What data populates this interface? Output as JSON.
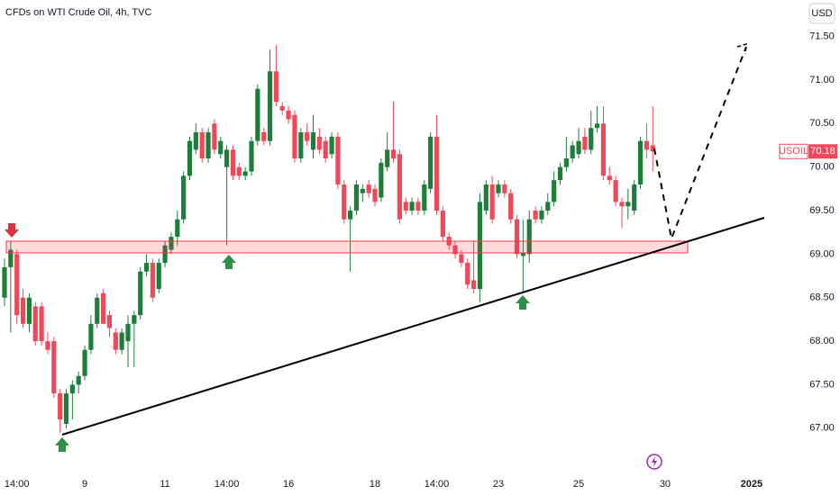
{
  "chart_data": {
    "type": "candlestick",
    "title": "CFDs on WTI Crude Oil, 4h, TVC",
    "currency": "USD",
    "symbol_label": "USOIL",
    "up_color": "#1b7f3a",
    "down_color": "#f0485a",
    "ylim": [
      66.75,
      71.92
    ],
    "yticks": [
      {
        "value": 67,
        "label": "67.00"
      },
      {
        "value": 67.5,
        "label": "67.50"
      },
      {
        "value": 68,
        "label": "68.00"
      },
      {
        "value": 68.5,
        "label": "68.50"
      },
      {
        "value": 69,
        "label": "69.00"
      },
      {
        "value": 69.5,
        "label": "69.50"
      },
      {
        "value": 70,
        "label": "70.00"
      },
      {
        "value": 70.5,
        "label": "70.50"
      },
      {
        "value": 71,
        "label": "71.00"
      },
      {
        "value": 71.5,
        "label": "71.50"
      }
    ],
    "categories": [
      null,
      null,
      "14:00",
      null,
      null,
      null,
      null,
      null,
      null,
      null,
      null,
      null,
      null,
      "9",
      null,
      null,
      null,
      null,
      null,
      null,
      null,
      null,
      null,
      null,
      null,
      null,
      "11",
      null,
      null,
      null,
      null,
      null,
      null,
      null,
      null,
      null,
      "14:00",
      null,
      null,
      null,
      null,
      null,
      null,
      null,
      null,
      null,
      "16",
      null,
      null,
      null,
      null,
      null,
      null,
      null,
      null,
      null,
      null,
      null,
      null,
      null,
      "18",
      null,
      null,
      null,
      null,
      null,
      null,
      null,
      null,
      null,
      "14:00",
      null,
      null,
      null,
      null,
      null,
      null,
      null,
      null,
      null,
      "23",
      null,
      null,
      null,
      null,
      null,
      null,
      null,
      null,
      null,
      null,
      null,
      null,
      "25",
      null,
      null,
      null,
      null,
      null,
      null,
      null,
      null,
      null,
      null,
      null,
      null,
      null,
      "30",
      null,
      null,
      null,
      null,
      null,
      null,
      null,
      null,
      null,
      null,
      null,
      null,
      null,
      "2025",
      null,
      null,
      null,
      null,
      null,
      null,
      null,
      null
    ],
    "ohlc": [
      [
        68.5,
        68.95,
        68.4,
        68.85
      ],
      [
        68.85,
        69.15,
        68.1,
        69.05
      ],
      [
        69.0,
        69.05,
        68.2,
        68.3
      ],
      [
        68.5,
        68.6,
        68.15,
        68.2
      ],
      [
        68.2,
        68.55,
        68.1,
        68.5
      ],
      [
        68.4,
        68.45,
        67.95,
        68.0
      ],
      [
        68.4,
        68.45,
        67.95,
        68.0
      ],
      [
        68.0,
        68.1,
        67.85,
        67.9
      ],
      [
        68.0,
        68.05,
        67.35,
        67.4
      ],
      [
        67.4,
        67.45,
        66.95,
        67.1
      ],
      [
        67.05,
        67.45,
        67.0,
        67.4
      ],
      [
        67.4,
        67.55,
        67.1,
        67.5
      ],
      [
        67.5,
        67.65,
        67.4,
        67.6
      ],
      [
        67.6,
        67.95,
        67.55,
        67.9
      ],
      [
        67.9,
        68.3,
        67.85,
        68.2
      ],
      [
        68.2,
        68.55,
        68.15,
        68.5
      ],
      [
        68.55,
        68.6,
        68.2,
        68.2
      ],
      [
        68.3,
        68.35,
        68.05,
        68.15
      ],
      [
        68.1,
        68.15,
        67.85,
        67.9
      ],
      [
        67.9,
        68.15,
        67.85,
        68.1
      ],
      [
        68.0,
        68.3,
        67.7,
        68.2
      ],
      [
        68.2,
        68.35,
        67.7,
        68.3
      ],
      [
        68.3,
        68.85,
        68.25,
        68.8
      ],
      [
        68.8,
        69.0,
        68.75,
        68.9
      ],
      [
        68.9,
        68.95,
        68.45,
        68.5
      ],
      [
        68.6,
        68.95,
        68.55,
        68.9
      ],
      [
        68.9,
        69.15,
        68.85,
        69.1
      ],
      [
        69.05,
        69.25,
        69.0,
        69.2
      ],
      [
        69.2,
        69.5,
        69.1,
        69.4
      ],
      [
        69.4,
        69.95,
        69.35,
        69.9
      ],
      [
        69.9,
        70.35,
        69.85,
        70.3
      ],
      [
        70.2,
        70.5,
        70.15,
        70.4
      ],
      [
        70.4,
        70.45,
        70.05,
        70.1
      ],
      [
        70.1,
        70.45,
        70.05,
        70.4
      ],
      [
        70.5,
        70.55,
        70.15,
        70.2
      ],
      [
        70.15,
        70.35,
        70.1,
        70.3
      ],
      [
        70.0,
        70.25,
        69.1,
        70.2
      ],
      [
        70.2,
        70.25,
        69.85,
        69.9
      ],
      [
        70.0,
        70.05,
        69.85,
        69.9
      ],
      [
        69.9,
        70.0,
        69.85,
        69.95
      ],
      [
        69.95,
        70.35,
        69.9,
        70.3
      ],
      [
        70.3,
        70.95,
        70.25,
        70.9
      ],
      [
        70.4,
        70.45,
        70.25,
        70.3
      ],
      [
        70.3,
        71.35,
        70.25,
        71.1
      ],
      [
        71.1,
        71.4,
        70.7,
        70.75
      ],
      [
        70.7,
        70.75,
        70.6,
        70.65
      ],
      [
        70.65,
        70.7,
        70.5,
        70.55
      ],
      [
        70.6,
        70.65,
        70.05,
        70.1
      ],
      [
        70.1,
        70.45,
        70.05,
        70.4
      ],
      [
        70.4,
        70.5,
        70.25,
        70.3
      ],
      [
        70.2,
        70.6,
        70.1,
        70.4
      ],
      [
        70.35,
        70.45,
        70.15,
        70.2
      ],
      [
        70.3,
        70.35,
        70.05,
        70.1
      ],
      [
        70.15,
        70.4,
        70.1,
        70.35
      ],
      [
        70.35,
        70.4,
        69.75,
        69.8
      ],
      [
        69.8,
        69.85,
        69.35,
        69.4
      ],
      [
        69.4,
        69.55,
        68.8,
        69.5
      ],
      [
        69.5,
        69.85,
        69.45,
        69.8
      ],
      [
        69.7,
        69.8,
        69.6,
        69.75
      ],
      [
        69.8,
        69.85,
        69.65,
        69.7
      ],
      [
        69.75,
        69.8,
        69.55,
        69.6
      ],
      [
        69.65,
        70.1,
        69.6,
        70.05
      ],
      [
        70.0,
        70.4,
        69.95,
        70.2
      ],
      [
        70.2,
        70.75,
        70.05,
        70.1
      ],
      [
        70.15,
        70.2,
        69.35,
        69.4
      ],
      [
        69.6,
        69.65,
        69.45,
        69.5
      ],
      [
        69.5,
        69.65,
        69.45,
        69.6
      ],
      [
        69.6,
        69.65,
        69.45,
        69.5
      ],
      [
        69.5,
        69.85,
        69.45,
        69.8
      ],
      [
        69.75,
        70.4,
        69.7,
        70.35
      ],
      [
        70.35,
        70.6,
        69.45,
        69.5
      ],
      [
        69.5,
        69.55,
        69.15,
        69.2
      ],
      [
        69.2,
        69.25,
        69.05,
        69.1
      ],
      [
        69.1,
        69.15,
        68.95,
        69.0
      ],
      [
        69.0,
        69.05,
        68.85,
        68.9
      ],
      [
        68.9,
        68.95,
        68.6,
        68.65
      ],
      [
        68.7,
        69.15,
        68.55,
        68.6
      ],
      [
        68.6,
        69.7,
        68.45,
        69.6
      ],
      [
        69.5,
        69.85,
        69.45,
        69.8
      ],
      [
        69.8,
        69.9,
        69.35,
        69.4
      ],
      [
        69.7,
        69.85,
        69.65,
        69.8
      ],
      [
        69.8,
        69.85,
        69.65,
        69.7
      ],
      [
        69.7,
        69.75,
        69.35,
        69.4
      ],
      [
        69.4,
        69.45,
        68.95,
        69.0
      ],
      [
        68.98,
        69.4,
        68.55,
        69.02
      ],
      [
        69.0,
        69.5,
        68.9,
        69.4
      ],
      [
        69.5,
        69.55,
        69.35,
        69.4
      ],
      [
        69.4,
        69.55,
        69.35,
        69.5
      ],
      [
        69.5,
        69.7,
        69.45,
        69.6
      ],
      [
        69.6,
        69.95,
        69.55,
        69.85
      ],
      [
        69.85,
        70.05,
        69.8,
        70.0
      ],
      [
        70.0,
        70.35,
        69.95,
        70.1
      ],
      [
        70.1,
        70.3,
        70.05,
        70.25
      ],
      [
        70.15,
        70.45,
        70.1,
        70.3
      ],
      [
        70.35,
        70.45,
        70.15,
        70.2
      ],
      [
        70.2,
        70.65,
        70.15,
        70.45
      ],
      [
        70.45,
        70.7,
        70.4,
        70.5
      ],
      [
        70.5,
        70.7,
        69.85,
        69.9
      ],
      [
        69.9,
        70.0,
        69.8,
        69.85
      ],
      [
        69.85,
        69.9,
        69.55,
        69.6
      ],
      [
        69.6,
        69.65,
        69.3,
        69.55
      ],
      [
        69.55,
        69.75,
        69.4,
        69.6
      ],
      [
        69.5,
        69.85,
        69.45,
        69.8
      ],
      [
        69.8,
        70.35,
        69.75,
        70.3
      ],
      [
        70.3,
        70.5,
        70.1,
        70.2
      ],
      [
        70.25,
        70.7,
        69.95,
        70.18
      ],
      null,
      null,
      null,
      null,
      null,
      null,
      null,
      null,
      null,
      null,
      null,
      null,
      null,
      null,
      null,
      null,
      null,
      null,
      null,
      null,
      null,
      null,
      null,
      null
    ]
  }
}
